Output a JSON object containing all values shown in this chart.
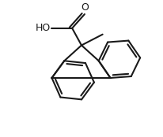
{
  "bg_color": "#ffffff",
  "line_color": "#1a1a1a",
  "line_width": 1.5,
  "text_color": "#1a1a1a",
  "font_size": 9,
  "figsize": [
    2.06,
    1.74
  ],
  "dpi": 100
}
